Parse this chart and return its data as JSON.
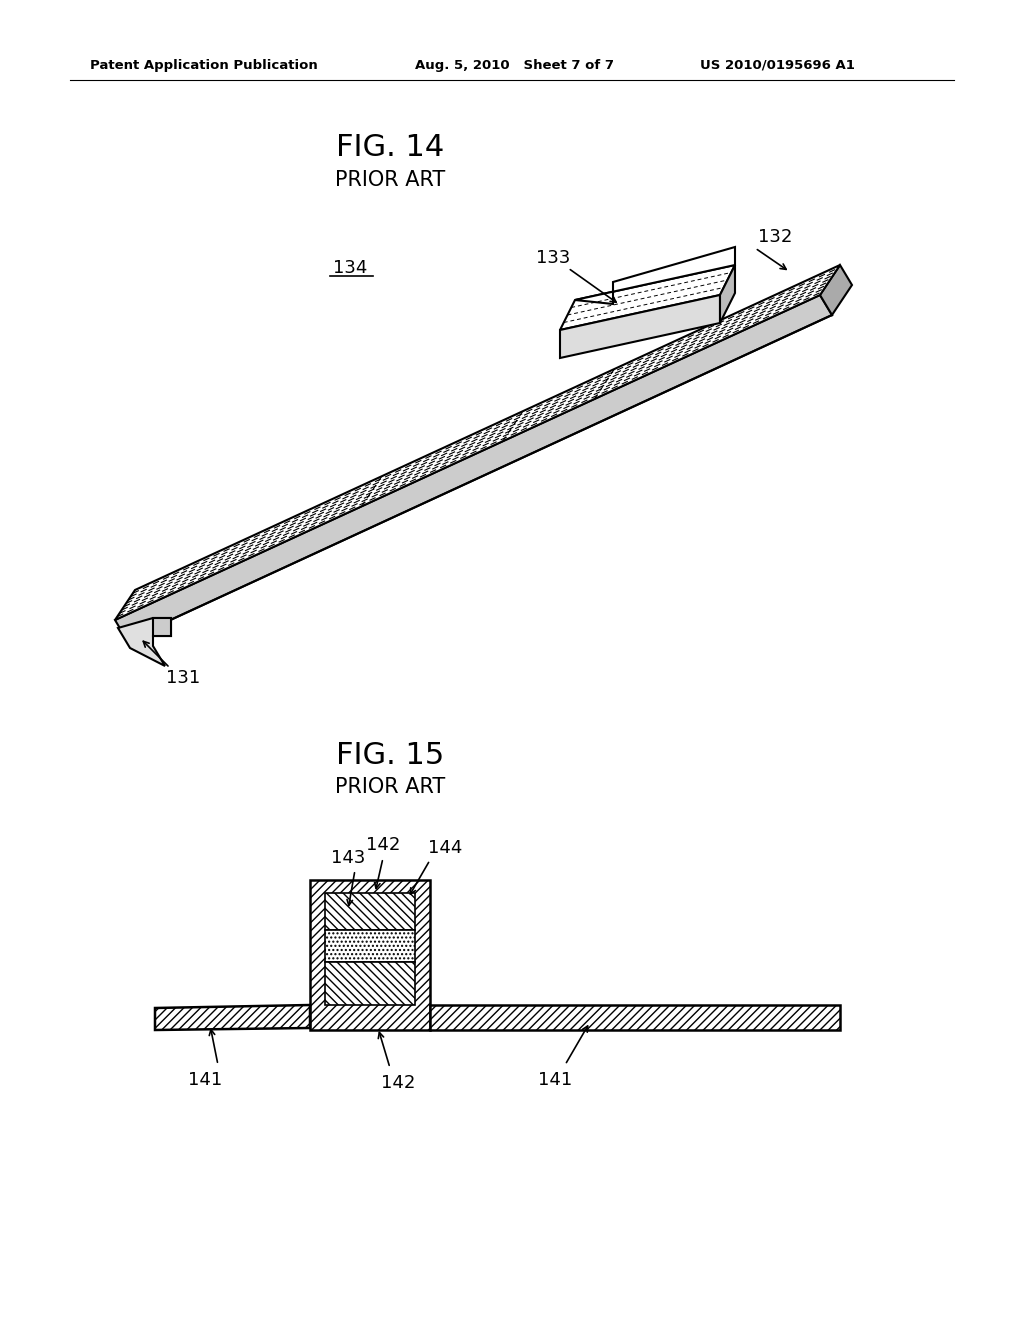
{
  "background_color": "#ffffff",
  "header_left": "Patent Application Publication",
  "header_center": "Aug. 5, 2010   Sheet 7 of 7",
  "header_right": "US 2010/0195696 A1",
  "fig14_title": "FIG. 14",
  "fig14_subtitle": "PRIOR ART",
  "fig15_title": "FIG. 15",
  "fig15_subtitle": "PRIOR ART",
  "label_131": "131",
  "label_132": "132",
  "label_133": "133",
  "label_134": "134",
  "label_141a": "141",
  "label_141b": "141",
  "label_142a": "142",
  "label_142b": "142",
  "label_143": "143",
  "label_144": "144"
}
